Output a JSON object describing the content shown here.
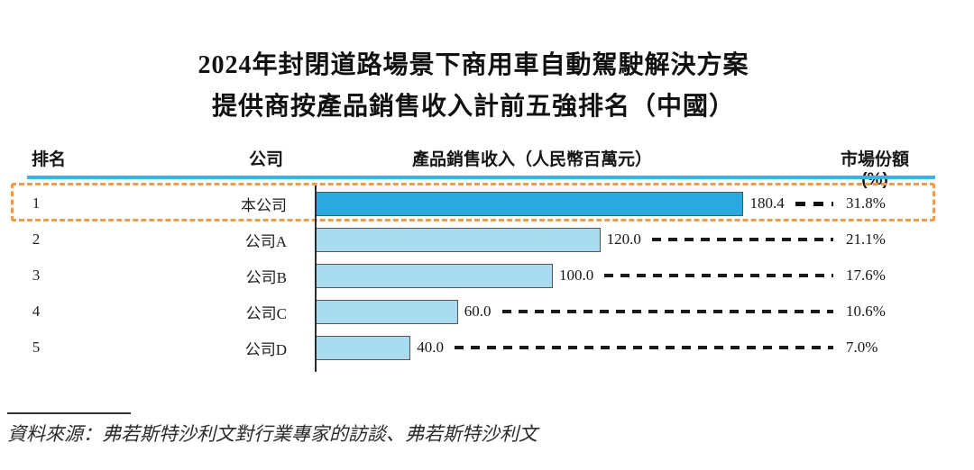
{
  "title": {
    "line1": "2024年封閉道路場景下商用車自動駕駛解決方案",
    "line2": "提供商按產品銷售收入計前五強排名（中國）"
  },
  "table": {
    "headers": {
      "rank": "排名",
      "company": "公司",
      "revenue": "產品銷售收入（人民幣百萬元）",
      "share": "市場份額(%)"
    },
    "rows": [
      {
        "rank": "1",
        "company": "本公司",
        "revenue": 180.4,
        "revenue_label": "180.4",
        "share": "31.8%",
        "highlight": true
      },
      {
        "rank": "2",
        "company": "公司A",
        "revenue": 120.0,
        "revenue_label": "120.0",
        "share": "21.1%",
        "highlight": false
      },
      {
        "rank": "3",
        "company": "公司B",
        "revenue": 100.0,
        "revenue_label": "100.0",
        "share": "17.6%",
        "highlight": false
      },
      {
        "rank": "4",
        "company": "公司C",
        "revenue": 60.0,
        "revenue_label": "60.0",
        "share": "10.6%",
        "highlight": false
      },
      {
        "rank": "5",
        "company": "公司D",
        "revenue": 40.0,
        "revenue_label": "40.0",
        "share": "7.0%",
        "highlight": false
      }
    ]
  },
  "source": "資料來源：弗若斯特沙利文對行業專家的訪談、弗若斯特沙利文",
  "colors": {
    "bar_highlight": "#29A9E0",
    "bar_default": "#A9DBF0",
    "bar_border": "#55565A",
    "header_rule": "#3EB1E2",
    "highlight_border": "#F2994A",
    "leader": "#1b1b1b"
  },
  "chart_data": {
    "type": "bar",
    "orientation": "horizontal",
    "title": "2024年封閉道路場景下商用車自動駕駛解決方案提供商按產品銷售收入計前五強排名（中國）",
    "categories": [
      "本公司",
      "公司A",
      "公司B",
      "公司C",
      "公司D"
    ],
    "ranks": [
      1,
      2,
      3,
      4,
      5
    ],
    "series": [
      {
        "name": "產品銷售收入（人民幣百萬元）",
        "values": [
          180.4,
          120.0,
          100.0,
          60.0,
          40.0
        ]
      },
      {
        "name": "市場份額(%)",
        "values": [
          31.8,
          21.1,
          17.6,
          10.6,
          7.0
        ]
      }
    ],
    "xlabel": "產品銷售收入（人民幣百萬元）",
    "ylabel": "排名",
    "xlim": [
      0,
      200
    ],
    "grid": false,
    "legend_position": "none",
    "annotations": [
      "排名1（本公司）以橙色虛線框突出顯示"
    ],
    "source": "資料來源：弗若斯特沙利文對行業專家的訪談、弗若斯特沙利文"
  }
}
